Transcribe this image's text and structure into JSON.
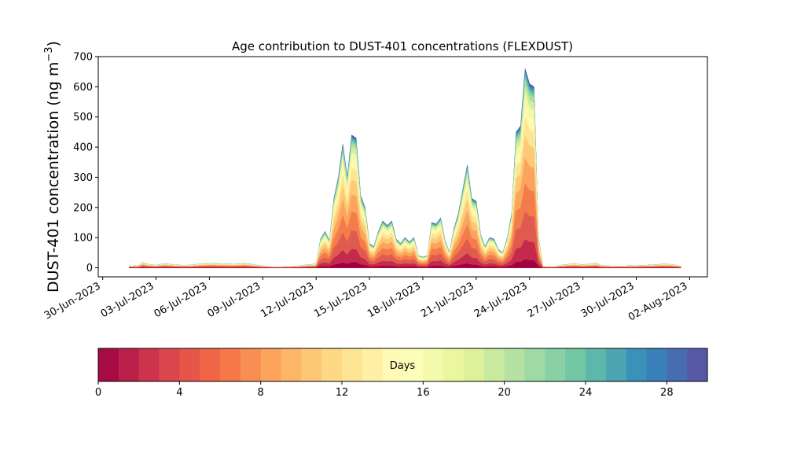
{
  "chart_data": {
    "type": "area",
    "stacked": true,
    "title": "Age contribution to DUST-401 concentrations (FLEXDUST)",
    "ylabel": "DUST-401 concentration (ng m",
    "ylabel_superscript": "−3",
    "ylabel_close": ")",
    "ylim": [
      -30,
      700
    ],
    "yticks": [
      0,
      100,
      200,
      300,
      400,
      500,
      600,
      700
    ],
    "xlim": [
      "2023-06-29T18:00",
      "2023-08-03T00:00"
    ],
    "xticks": [
      "2023-06-30",
      "2023-07-03",
      "2023-07-06",
      "2023-07-09",
      "2023-07-12",
      "2023-07-15",
      "2023-07-18",
      "2023-07-21",
      "2023-07-24",
      "2023-07-27",
      "2023-07-30",
      "2023-08-02"
    ],
    "xtick_labels": [
      "30-Jun-2023",
      "03-Jul-2023",
      "06-Jul-2023",
      "09-Jul-2023",
      "12-Jul-2023",
      "15-Jul-2023",
      "18-Jul-2023",
      "21-Jul-2023",
      "24-Jul-2023",
      "27-Jul-2023",
      "30-Jul-2023",
      "02-Aug-2023"
    ],
    "grid": false,
    "total_concentration": {
      "x": [
        "2023-07-01T12:00",
        "2023-07-02T00:00",
        "2023-07-02T06:00",
        "2023-07-02T12:00",
        "2023-07-03T00:00",
        "2023-07-03T12:00",
        "2023-07-04T00:00",
        "2023-07-04T12:00",
        "2023-07-05T00:00",
        "2023-07-05T12:00",
        "2023-07-06T00:00",
        "2023-07-06T12:00",
        "2023-07-07T00:00",
        "2023-07-07T12:00",
        "2023-07-08T00:00",
        "2023-07-08T12:00",
        "2023-07-09T00:00",
        "2023-07-09T12:00",
        "2023-07-10T00:00",
        "2023-07-10T12:00",
        "2023-07-11T00:00",
        "2023-07-11T12:00",
        "2023-07-12T00:00",
        "2023-07-12T06:00",
        "2023-07-12T12:00",
        "2023-07-12T18:00",
        "2023-07-13T00:00",
        "2023-07-13T06:00",
        "2023-07-13T12:00",
        "2023-07-13T18:00",
        "2023-07-14T00:00",
        "2023-07-14T06:00",
        "2023-07-14T12:00",
        "2023-07-14T18:00",
        "2023-07-15T00:00",
        "2023-07-15T06:00",
        "2023-07-15T12:00",
        "2023-07-15T18:00",
        "2023-07-16T00:00",
        "2023-07-16T06:00",
        "2023-07-16T12:00",
        "2023-07-16T18:00",
        "2023-07-17T00:00",
        "2023-07-17T06:00",
        "2023-07-17T12:00",
        "2023-07-17T18:00",
        "2023-07-18T00:00",
        "2023-07-18T06:00",
        "2023-07-18T12:00",
        "2023-07-18T18:00",
        "2023-07-19T00:00",
        "2023-07-19T06:00",
        "2023-07-19T12:00",
        "2023-07-19T18:00",
        "2023-07-20T00:00",
        "2023-07-20T06:00",
        "2023-07-20T12:00",
        "2023-07-20T18:00",
        "2023-07-21T00:00",
        "2023-07-21T06:00",
        "2023-07-21T12:00",
        "2023-07-21T18:00",
        "2023-07-22T00:00",
        "2023-07-22T06:00",
        "2023-07-22T12:00",
        "2023-07-22T18:00",
        "2023-07-23T00:00",
        "2023-07-23T06:00",
        "2023-07-23T12:00",
        "2023-07-23T18:00",
        "2023-07-24T00:00",
        "2023-07-24T06:00",
        "2023-07-24T12:00",
        "2023-07-24T18:00",
        "2023-07-25T00:00",
        "2023-07-25T06:00",
        "2023-07-25T12:00",
        "2023-07-25T18:00",
        "2023-07-26T00:00",
        "2023-07-26T06:00",
        "2023-07-26T12:00",
        "2023-07-26T18:00",
        "2023-07-27T00:00",
        "2023-07-27T06:00",
        "2023-07-27T12:00",
        "2023-07-27T18:00",
        "2023-07-28T00:00",
        "2023-07-28T12:00",
        "2023-07-29T00:00",
        "2023-07-29T12:00",
        "2023-07-30T00:00",
        "2023-07-30T12:00",
        "2023-07-31T00:00",
        "2023-07-31T12:00",
        "2023-08-01T00:00",
        "2023-08-01T12:00"
      ],
      "y": [
        5,
        7,
        18,
        12,
        8,
        14,
        10,
        8,
        9,
        13,
        15,
        14,
        13,
        12,
        15,
        10,
        6,
        3,
        3,
        4,
        6,
        10,
        12,
        95,
        120,
        90,
        230,
        300,
        410,
        300,
        440,
        430,
        240,
        200,
        80,
        70,
        120,
        155,
        140,
        155,
        95,
        80,
        100,
        85,
        100,
        40,
        35,
        40,
        150,
        145,
        165,
        90,
        50,
        130,
        180,
        260,
        340,
        230,
        220,
        110,
        70,
        100,
        95,
        60,
        50,
        100,
        180,
        450,
        470,
        660,
        610,
        600,
        100,
        5,
        4,
        3,
        5,
        8,
        10,
        12,
        13,
        12,
        10,
        12,
        13,
        15,
        8,
        6,
        5,
        6,
        7,
        8,
        10,
        12,
        11,
        5
      ]
    },
    "colorbar": {
      "label": "Days",
      "range": [
        0,
        30
      ],
      "ticks": [
        0,
        4,
        8,
        12,
        16,
        20,
        24,
        28
      ],
      "bins": 30,
      "colormap": "Spectral"
    },
    "age_layers": {
      "days": [
        0,
        2,
        4,
        6,
        8,
        10,
        12,
        14,
        16,
        18,
        20,
        22,
        24,
        26,
        28
      ],
      "colors": [
        "#9e0142",
        "#c52a4c",
        "#e05b4f",
        "#f47c4a",
        "#fba45f",
        "#fdc877",
        "#fee593",
        "#fff8b0",
        "#f1f9a8",
        "#d6ee9b",
        "#abdda4",
        "#7ccba5",
        "#54aead",
        "#3a8ab9",
        "#5e4fa2"
      ],
      "cumulative_share": [
        0.04,
        0.14,
        0.28,
        0.42,
        0.55,
        0.66,
        0.75,
        0.82,
        0.87,
        0.91,
        0.94,
        0.96,
        0.975,
        0.99,
        1.0
      ]
    }
  }
}
